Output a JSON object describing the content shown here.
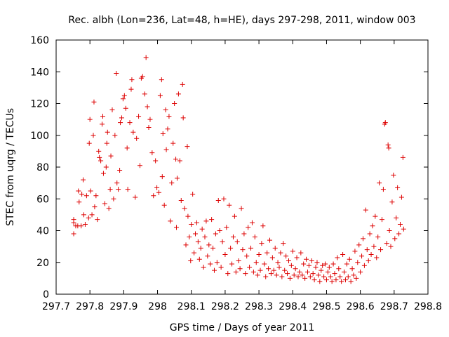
{
  "colors": {
    "series": "#dd0000",
    "axis": "#000000",
    "background": "#ffffff"
  },
  "chart_data": {
    "type": "scatter",
    "title": "Rec. albh (Lon=236, Lat=48, h=HE), days 297-298, 2011, window 003",
    "xlabel": "GPS time / Days of year 2011",
    "ylabel": "STEC from uqrg / TECUs",
    "xlim": [
      297.7,
      298.8
    ],
    "ylim": [
      0,
      160
    ],
    "xticks": [
      297.7,
      297.8,
      297.9,
      298.0,
      298.1,
      298.2,
      298.3,
      298.4,
      298.5,
      298.6,
      298.7,
      298.8
    ],
    "xtick_labels": [
      "297.7",
      "297.8",
      "297.9",
      "298",
      "298.1",
      "298.2",
      "298.3",
      "298.4",
      "298.5",
      "298.6",
      "298.7",
      "298.8"
    ],
    "yticks": [
      0,
      20,
      40,
      60,
      80,
      100,
      120,
      140,
      160
    ],
    "ytick_labels": [
      "0",
      "20",
      "40",
      "60",
      "80",
      "100",
      "120",
      "140",
      "160"
    ],
    "grid": false,
    "marker": "+",
    "series": [
      {
        "points": [
          [
            297.752,
            38
          ],
          [
            297.752,
            45
          ],
          [
            297.752,
            47
          ],
          [
            297.758,
            43
          ],
          [
            297.764,
            43
          ],
          [
            297.766,
            65
          ],
          [
            297.768,
            58
          ],
          [
            297.774,
            43
          ],
          [
            297.776,
            63
          ],
          [
            297.78,
            72
          ],
          [
            297.782,
            50
          ],
          [
            297.786,
            44
          ],
          [
            297.79,
            62
          ],
          [
            297.796,
            48
          ],
          [
            297.798,
            95
          ],
          [
            297.8,
            110
          ],
          [
            297.802,
            65
          ],
          [
            297.806,
            50
          ],
          [
            297.81,
            100
          ],
          [
            297.812,
            121
          ],
          [
            297.814,
            55
          ],
          [
            297.818,
            62
          ],
          [
            297.822,
            47
          ],
          [
            297.826,
            90
          ],
          [
            297.828,
            86
          ],
          [
            297.832,
            84
          ],
          [
            297.836,
            107
          ],
          [
            297.838,
            112
          ],
          [
            297.84,
            76
          ],
          [
            297.844,
            57
          ],
          [
            297.848,
            80
          ],
          [
            297.85,
            95
          ],
          [
            297.852,
            102
          ],
          [
            297.856,
            54
          ],
          [
            297.86,
            66
          ],
          [
            297.862,
            87
          ],
          [
            297.866,
            116
          ],
          [
            297.87,
            60
          ],
          [
            297.874,
            100
          ],
          [
            297.878,
            139
          ],
          [
            297.88,
            70
          ],
          [
            297.884,
            66
          ],
          [
            297.888,
            78
          ],
          [
            297.89,
            108
          ],
          [
            297.894,
            111
          ],
          [
            297.898,
            123
          ],
          [
            297.902,
            125
          ],
          [
            297.906,
            117
          ],
          [
            297.91,
            92
          ],
          [
            297.912,
            66
          ],
          [
            297.918,
            108
          ],
          [
            297.922,
            129
          ],
          [
            297.924,
            135
          ],
          [
            297.928,
            102
          ],
          [
            297.934,
            61
          ],
          [
            297.938,
            98
          ],
          [
            297.944,
            112
          ],
          [
            297.948,
            81
          ],
          [
            297.952,
            136
          ],
          [
            297.956,
            137
          ],
          [
            297.962,
            126
          ],
          [
            297.966,
            149
          ],
          [
            297.97,
            118
          ],
          [
            297.974,
            105
          ],
          [
            297.978,
            110
          ],
          [
            297.984,
            89
          ],
          [
            297.988,
            62
          ],
          [
            297.994,
            84
          ],
          [
            297.998,
            67
          ],
          [
            298.004,
            64
          ],
          [
            298.008,
            125
          ],
          [
            298.012,
            135
          ],
          [
            298.014,
            74
          ],
          [
            298.016,
            101
          ],
          [
            298.02,
            56
          ],
          [
            298.024,
            116
          ],
          [
            298.026,
            91
          ],
          [
            298.03,
            104
          ],
          [
            298.034,
            112
          ],
          [
            298.038,
            46
          ],
          [
            298.042,
            70
          ],
          [
            298.046,
            95
          ],
          [
            298.05,
            120
          ],
          [
            298.054,
            85
          ],
          [
            298.056,
            42
          ],
          [
            298.058,
            73
          ],
          [
            298.062,
            126
          ],
          [
            298.066,
            84
          ],
          [
            298.07,
            59
          ],
          [
            298.074,
            132
          ],
          [
            298.076,
            111
          ],
          [
            298.08,
            54
          ],
          [
            298.084,
            31
          ],
          [
            298.088,
            93
          ],
          [
            298.09,
            49
          ],
          [
            298.094,
            36
          ],
          [
            298.098,
            21
          ],
          [
            298.1,
            44
          ],
          [
            298.104,
            63
          ],
          [
            298.108,
            26
          ],
          [
            298.112,
            38
          ],
          [
            298.116,
            45
          ],
          [
            298.12,
            33
          ],
          [
            298.124,
            22
          ],
          [
            298.128,
            29
          ],
          [
            298.132,
            41
          ],
          [
            298.136,
            17
          ],
          [
            298.14,
            36
          ],
          [
            298.144,
            46
          ],
          [
            298.148,
            24
          ],
          [
            298.152,
            31
          ],
          [
            298.156,
            19
          ],
          [
            298.16,
            47
          ],
          [
            298.164,
            29
          ],
          [
            298.168,
            15
          ],
          [
            298.172,
            38
          ],
          [
            298.176,
            20
          ],
          [
            298.18,
            59
          ],
          [
            298.184,
            40
          ],
          [
            298.188,
            17
          ],
          [
            298.192,
            33
          ],
          [
            298.196,
            60
          ],
          [
            298.2,
            25
          ],
          [
            298.204,
            42
          ],
          [
            298.208,
            13
          ],
          [
            298.212,
            56
          ],
          [
            298.216,
            29
          ],
          [
            298.22,
            19
          ],
          [
            298.224,
            36
          ],
          [
            298.228,
            49
          ],
          [
            298.232,
            14
          ],
          [
            298.236,
            33
          ],
          [
            298.24,
            21
          ],
          [
            298.244,
            16
          ],
          [
            298.248,
            54
          ],
          [
            298.252,
            28
          ],
          [
            298.256,
            38
          ],
          [
            298.26,
            13
          ],
          [
            298.264,
            24
          ],
          [
            298.268,
            42
          ],
          [
            298.272,
            17
          ],
          [
            298.276,
            29
          ],
          [
            298.28,
            45
          ],
          [
            298.284,
            14
          ],
          [
            298.288,
            36
          ],
          [
            298.292,
            20
          ],
          [
            298.296,
            12
          ],
          [
            298.3,
            25
          ],
          [
            298.304,
            15
          ],
          [
            298.308,
            32
          ],
          [
            298.312,
            43
          ],
          [
            298.316,
            19
          ],
          [
            298.32,
            11
          ],
          [
            298.324,
            26
          ],
          [
            298.328,
            16
          ],
          [
            298.332,
            34
          ],
          [
            298.336,
            13
          ],
          [
            298.34,
            23
          ],
          [
            298.344,
            15
          ],
          [
            298.348,
            29
          ],
          [
            298.352,
            12
          ],
          [
            298.356,
            20
          ],
          [
            298.36,
            17
          ],
          [
            298.364,
            26
          ],
          [
            298.368,
            11
          ],
          [
            298.372,
            32
          ],
          [
            298.376,
            15
          ],
          [
            298.38,
            24
          ],
          [
            298.384,
            13
          ],
          [
            298.388,
            21
          ],
          [
            298.392,
            10
          ],
          [
            298.396,
            18
          ],
          [
            298.4,
            27
          ],
          [
            298.404,
            12
          ],
          [
            298.408,
            16
          ],
          [
            298.412,
            23
          ],
          [
            298.416,
            11
          ],
          [
            298.42,
            14
          ],
          [
            298.424,
            26
          ],
          [
            298.428,
            12
          ],
          [
            298.432,
            19
          ],
          [
            298.436,
            10
          ],
          [
            298.44,
            22
          ],
          [
            298.444,
            14
          ],
          [
            298.448,
            18
          ],
          [
            298.452,
            11
          ],
          [
            298.456,
            21
          ],
          [
            298.46,
            13
          ],
          [
            298.464,
            9
          ],
          [
            298.468,
            17
          ],
          [
            298.472,
            20
          ],
          [
            298.476,
            12
          ],
          [
            298.48,
            8
          ],
          [
            298.484,
            15
          ],
          [
            298.488,
            18
          ],
          [
            298.492,
            11
          ],
          [
            298.496,
            19
          ],
          [
            298.5,
            9
          ],
          [
            298.504,
            14
          ],
          [
            298.508,
            17
          ],
          [
            298.512,
            11
          ],
          [
            298.516,
            8
          ],
          [
            298.52,
            19
          ],
          [
            298.524,
            13
          ],
          [
            298.528,
            9
          ],
          [
            298.532,
            23
          ],
          [
            298.536,
            16
          ],
          [
            298.54,
            11
          ],
          [
            298.544,
            8
          ],
          [
            298.548,
            25
          ],
          [
            298.552,
            14
          ],
          [
            298.556,
            9
          ],
          [
            298.56,
            19
          ],
          [
            298.564,
            11
          ],
          [
            298.568,
            22
          ],
          [
            298.572,
            8
          ],
          [
            298.576,
            16
          ],
          [
            298.58,
            12
          ],
          [
            298.584,
            27
          ],
          [
            298.588,
            10
          ],
          [
            298.592,
            20
          ],
          [
            298.596,
            31
          ],
          [
            298.6,
            14
          ],
          [
            298.604,
            24
          ],
          [
            298.608,
            35
          ],
          [
            298.612,
            18
          ],
          [
            298.616,
            53
          ],
          [
            298.62,
            28
          ],
          [
            298.624,
            21
          ],
          [
            298.628,
            38
          ],
          [
            298.632,
            25
          ],
          [
            298.636,
            43
          ],
          [
            298.64,
            30
          ],
          [
            298.644,
            49
          ],
          [
            298.648,
            23
          ],
          [
            298.652,
            36
          ],
          [
            298.656,
            70
          ],
          [
            298.66,
            28
          ],
          [
            298.664,
            47
          ],
          [
            298.668,
            66
          ],
          [
            298.672,
            107
          ],
          [
            298.674,
            108
          ],
          [
            298.678,
            32
          ],
          [
            298.682,
            94
          ],
          [
            298.684,
            92
          ],
          [
            298.686,
            40
          ],
          [
            298.69,
            30
          ],
          [
            298.694,
            58
          ],
          [
            298.698,
            75
          ],
          [
            298.702,
            35
          ],
          [
            298.706,
            48
          ],
          [
            298.71,
            67
          ],
          [
            298.714,
            38
          ],
          [
            298.718,
            44
          ],
          [
            298.722,
            61
          ],
          [
            298.726,
            86
          ],
          [
            298.728,
            41
          ]
        ]
      }
    ]
  }
}
